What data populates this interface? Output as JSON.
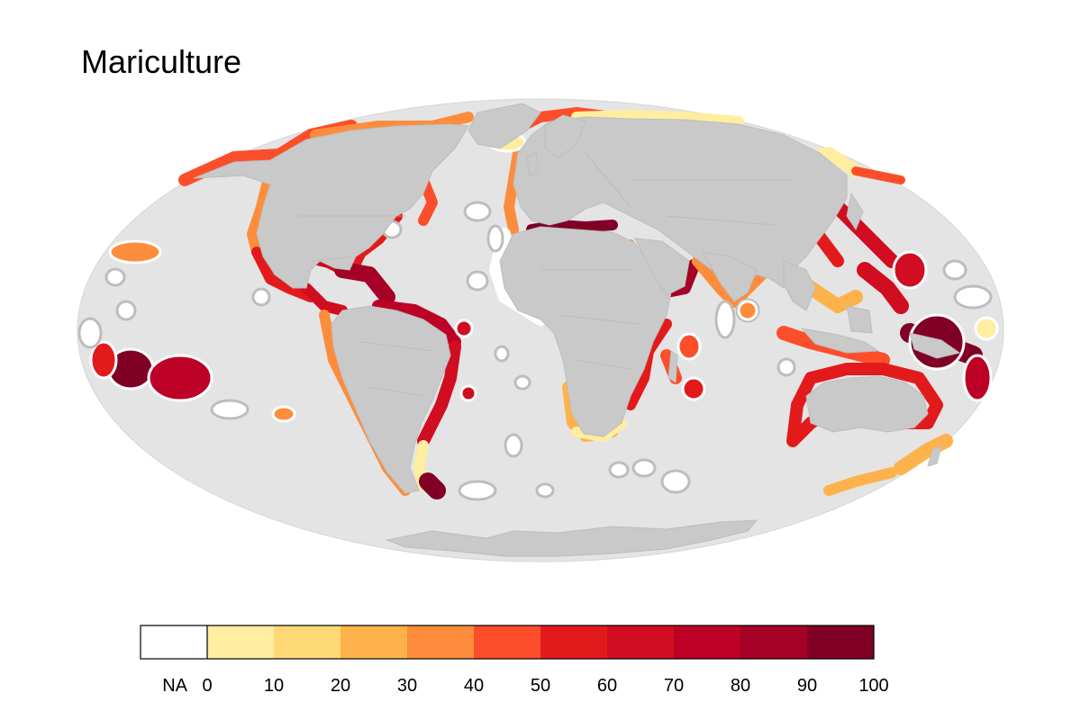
{
  "title": "Mariculture",
  "legend": {
    "na_label": "NA",
    "na_color": "#ffffff",
    "bins": [
      {
        "from": 0,
        "to": 10,
        "color": "#ffeda0"
      },
      {
        "from": 10,
        "to": 20,
        "color": "#fed976"
      },
      {
        "from": 20,
        "to": 30,
        "color": "#feb24c"
      },
      {
        "from": 30,
        "to": 40,
        "color": "#fd8d3c"
      },
      {
        "from": 40,
        "to": 50,
        "color": "#fc4e2a"
      },
      {
        "from": 50,
        "to": 60,
        "color": "#e31a1c"
      },
      {
        "from": 60,
        "to": 70,
        "color": "#d00d21"
      },
      {
        "from": 70,
        "to": 80,
        "color": "#bd0026"
      },
      {
        "from": 80,
        "to": 90,
        "color": "#a50026"
      },
      {
        "from": 90,
        "to": 100,
        "color": "#800026"
      }
    ],
    "tick_labels": [
      "0",
      "10",
      "20",
      "30",
      "40",
      "50",
      "60",
      "70",
      "80",
      "90",
      "100"
    ]
  },
  "colors": {
    "ocean": "#e4e4e4",
    "land": "#c9c9c9",
    "border": "#bdbdbd"
  }
}
